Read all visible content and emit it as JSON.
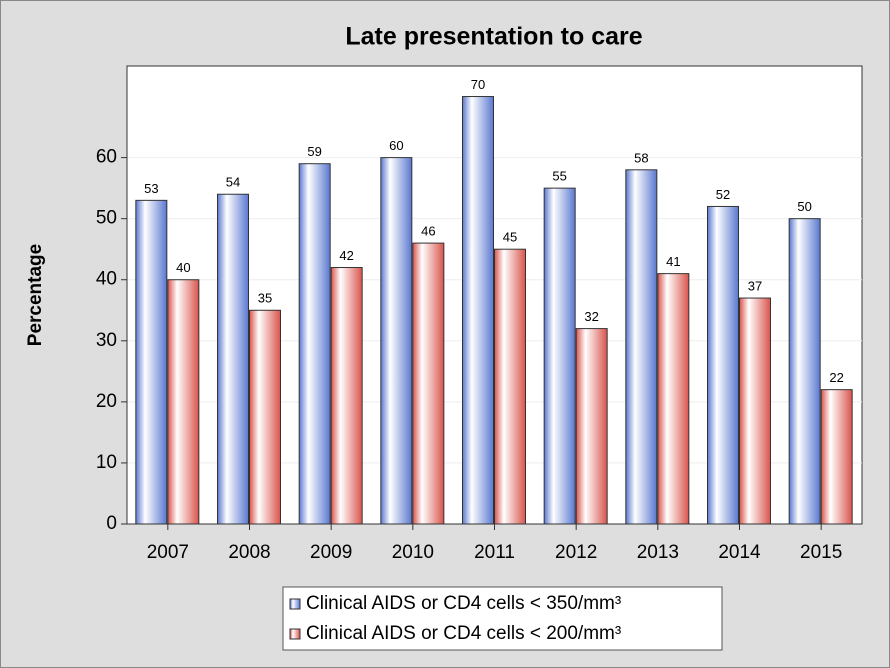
{
  "chart_data": {
    "type": "bar",
    "title": "Late presentation to care",
    "y_label": "Percentage",
    "categories": [
      "2007",
      "2008",
      "2009",
      "2010",
      "2011",
      "2012",
      "2013",
      "2014",
      "2015"
    ],
    "series": [
      {
        "name": "Clinical AIDS or CD4 cells < 350/mm³",
        "color": "#5a78d0",
        "values": [
          53,
          54,
          59,
          60,
          70,
          55,
          58,
          52,
          50
        ]
      },
      {
        "name": "Clinical AIDS or CD4 cells < 200/mm³",
        "color": "#d9544c",
        "values": [
          40,
          35,
          42,
          46,
          45,
          32,
          41,
          37,
          22
        ]
      }
    ],
    "ylim": [
      0,
      75
    ],
    "yticks": [
      0,
      10,
      20,
      30,
      40,
      50,
      60
    ],
    "grid": true,
    "legend": "bottom"
  }
}
